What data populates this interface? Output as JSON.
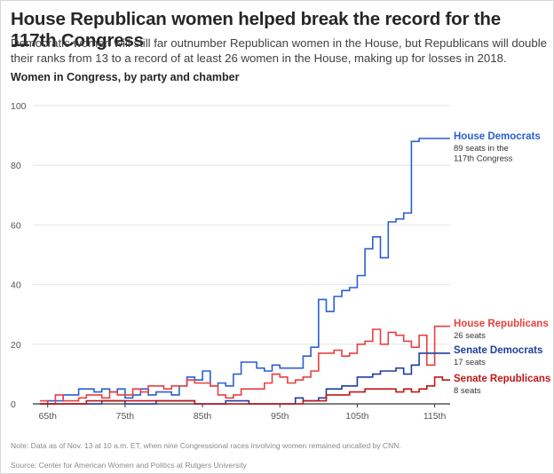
{
  "title": "House Republican women helped break the record for the 117th Congress",
  "subtitle": "Democratic women will still far outnumber Republican women in the House, but Republicans will double their ranks from 13 to a record of at least 26 women in the House, making up for losses in 2018.",
  "chart_heading": "Women in Congress, by party and chamber",
  "note": "Note: Data as of Nov. 13 at 10 a.m. ET, when nine Congressional races involving women remained uncalled by CNN.",
  "source": "Source: Center for American Women and Politics at Rutgers University",
  "chart_data": {
    "type": "line",
    "step": true,
    "x_label_ticks": [
      "65th",
      "75th",
      "85th",
      "95th",
      "105th",
      "115th"
    ],
    "x_tick_values": [
      65,
      75,
      85,
      95,
      105,
      115
    ],
    "xlim": [
      64,
      117
    ],
    "ylim": [
      0,
      100
    ],
    "y_ticks": [
      0,
      20,
      40,
      60,
      80,
      100
    ],
    "grid": true,
    "x": [
      64,
      65,
      66,
      67,
      68,
      69,
      70,
      71,
      72,
      73,
      74,
      75,
      76,
      77,
      78,
      79,
      80,
      81,
      82,
      83,
      84,
      85,
      86,
      87,
      88,
      89,
      90,
      91,
      92,
      93,
      94,
      95,
      96,
      97,
      98,
      99,
      100,
      101,
      102,
      103,
      104,
      105,
      106,
      107,
      108,
      109,
      110,
      111,
      112,
      113,
      114,
      115,
      116,
      117
    ],
    "series": [
      {
        "name": "House Democrats",
        "color": "#2a5fd1",
        "annotation": [
          "89 seats in the",
          "117th Congress"
        ],
        "values": [
          0,
          1,
          1,
          3,
          3,
          5,
          5,
          4,
          5,
          4,
          5,
          2,
          3,
          5,
          3,
          4,
          4,
          3,
          6,
          9,
          8,
          11,
          6,
          7,
          6,
          10,
          14,
          14,
          12,
          11,
          13,
          12,
          12,
          12,
          16,
          19,
          35,
          31,
          36,
          38,
          39,
          43,
          52,
          56,
          49,
          61,
          62,
          64,
          88,
          89,
          89,
          89,
          89,
          89
        ]
      },
      {
        "name": "House Republicans",
        "color": "#e84040",
        "annotation": [
          "26 seats"
        ],
        "values": [
          1,
          0,
          3,
          1,
          1,
          2,
          3,
          3,
          2,
          4,
          3,
          3,
          5,
          4,
          6,
          6,
          5,
          6,
          6,
          8,
          7,
          7,
          6,
          3,
          2,
          3,
          5,
          5,
          5,
          7,
          10,
          9,
          7,
          8,
          9,
          11,
          17,
          17,
          18,
          16,
          17,
          20,
          21,
          25,
          20,
          24,
          23,
          21,
          19,
          23,
          13,
          26,
          26,
          26
        ]
      },
      {
        "name": "Senate Democrats",
        "color": "#1f3e9e",
        "annotation": [
          "17 seats"
        ],
        "values": [
          0,
          0,
          0,
          0,
          0,
          0,
          0,
          0,
          1,
          1,
          1,
          0,
          0,
          0,
          0,
          1,
          1,
          1,
          1,
          1,
          0,
          0,
          0,
          0,
          1,
          1,
          1,
          0,
          0,
          0,
          0,
          0,
          0,
          2,
          1,
          1,
          2,
          5,
          5,
          6,
          6,
          9,
          9,
          10,
          11,
          11,
          12,
          10,
          13,
          17,
          17,
          17,
          17,
          17
        ]
      },
      {
        "name": "Senate Republicans",
        "color": "#c01717",
        "annotation": [
          "8 seats"
        ],
        "values": [
          0,
          0,
          0,
          0,
          0,
          0,
          1,
          1,
          1,
          1,
          1,
          1,
          1,
          1,
          1,
          1,
          1,
          1,
          1,
          1,
          0,
          0,
          0,
          0,
          0,
          0,
          0,
          0,
          0,
          0,
          0,
          0,
          0,
          0,
          1,
          1,
          1,
          3,
          3,
          3,
          4,
          4,
          5,
          5,
          5,
          5,
          4,
          5,
          4,
          5,
          6,
          9,
          8,
          8
        ]
      }
    ]
  }
}
